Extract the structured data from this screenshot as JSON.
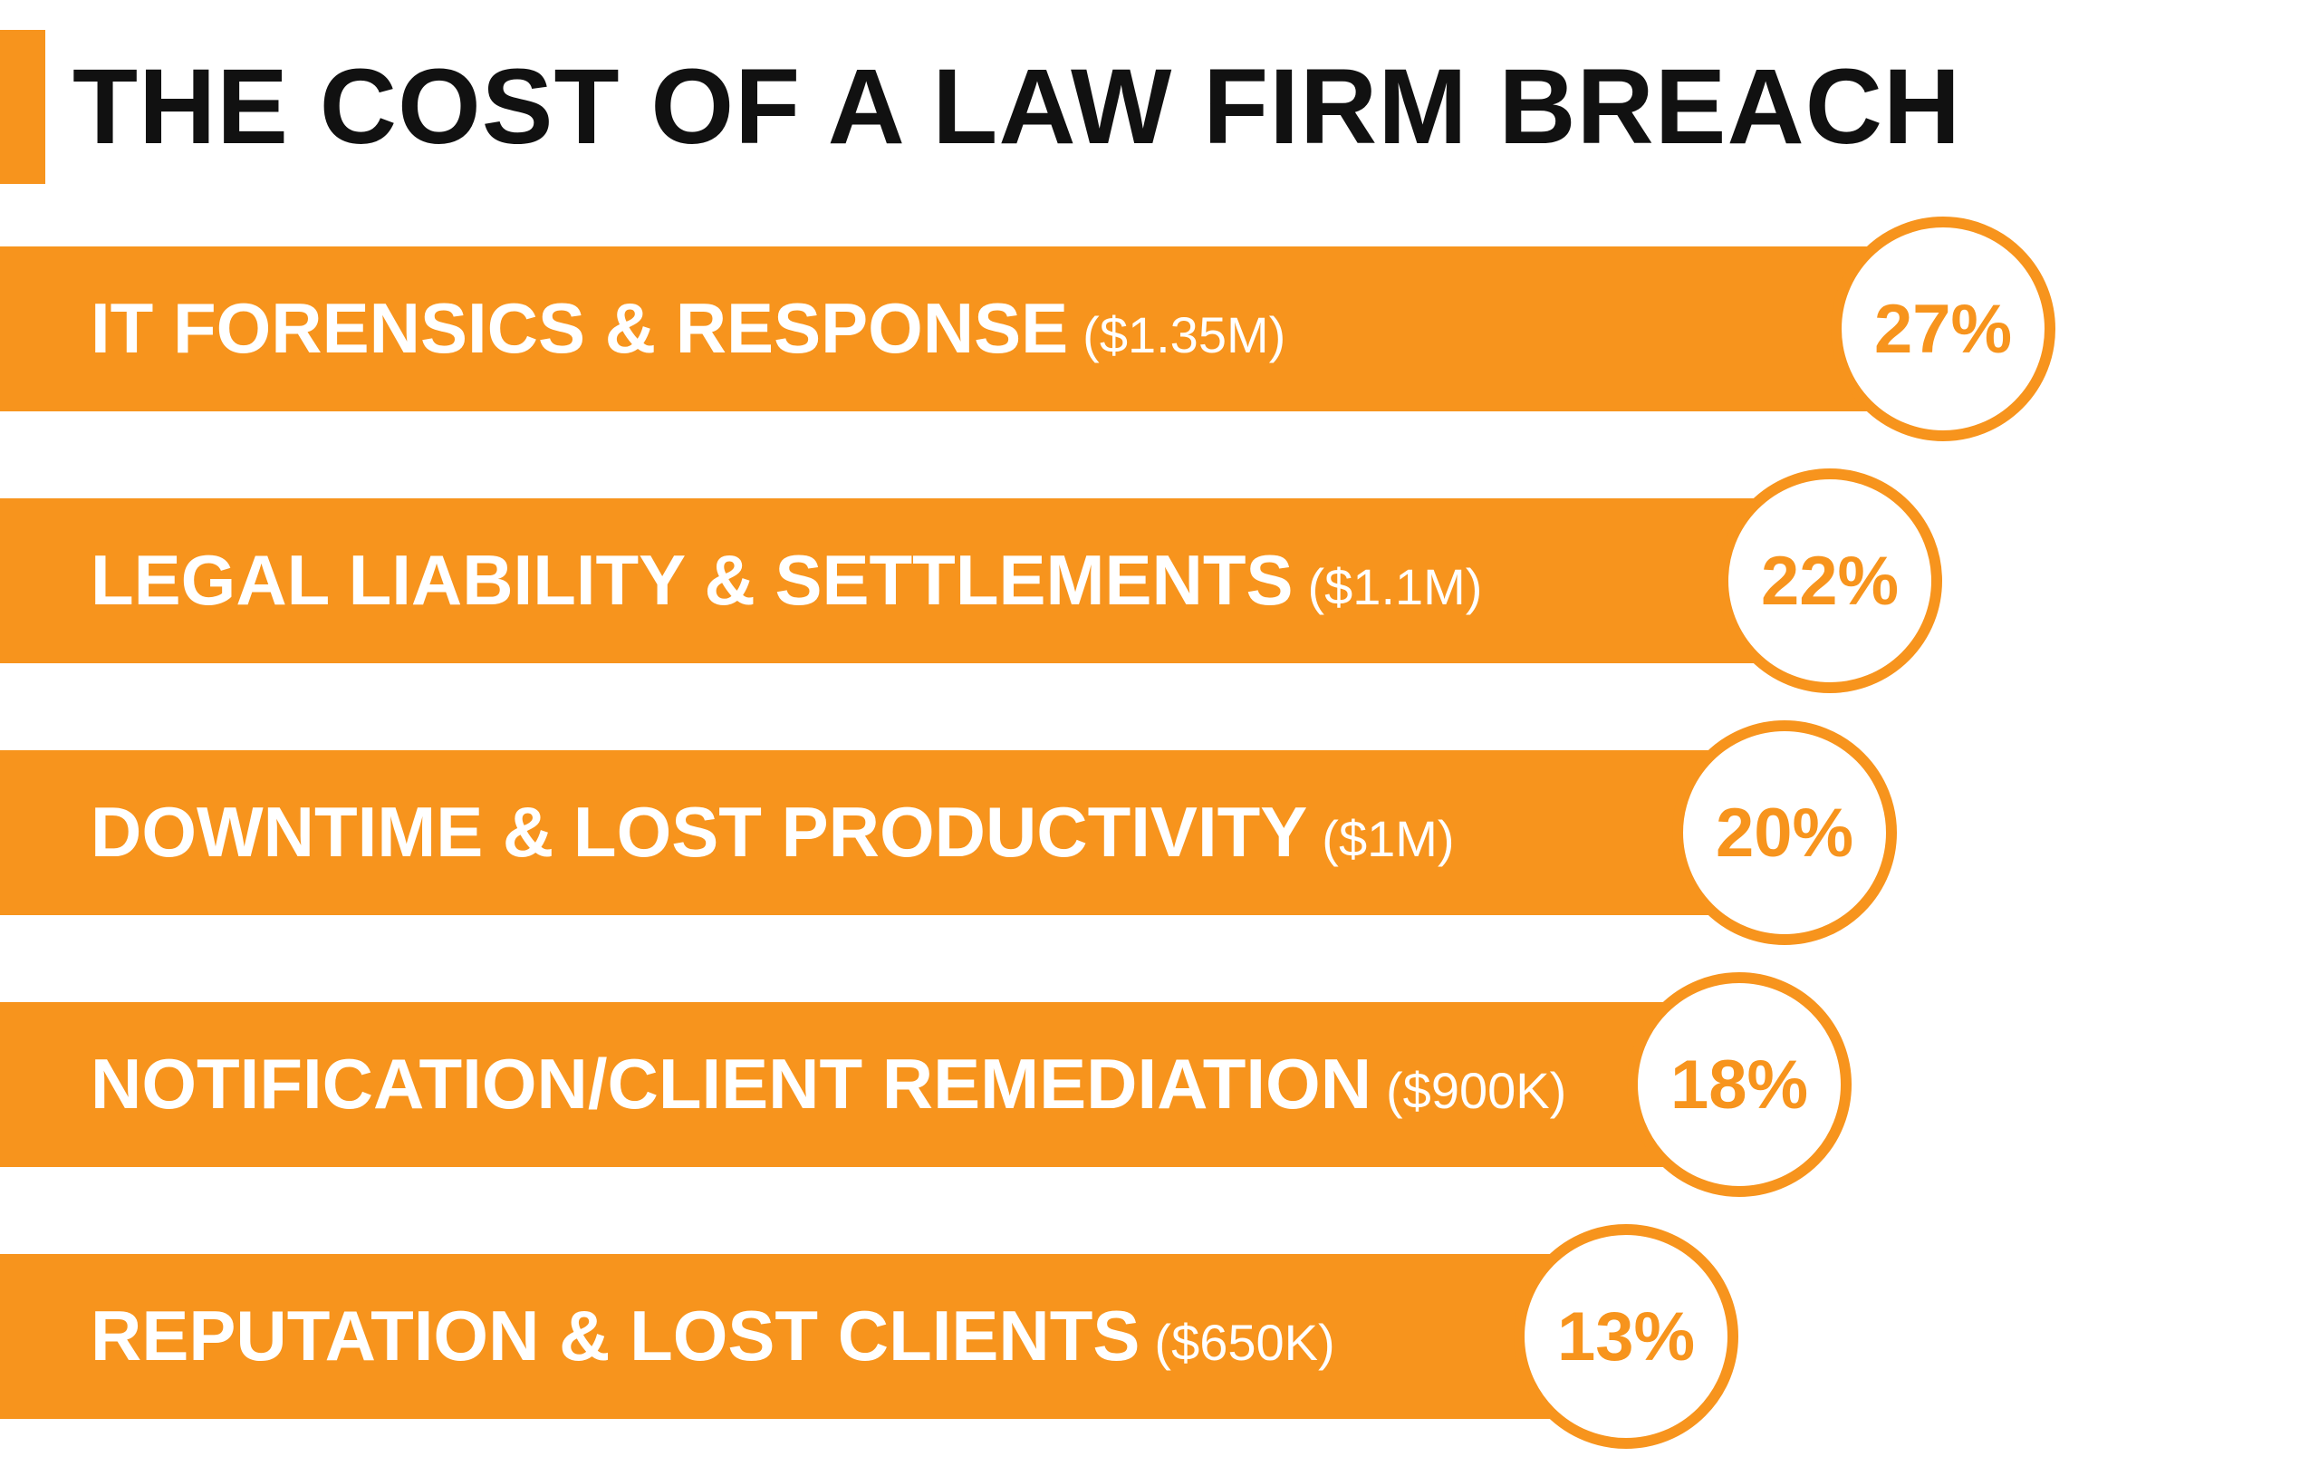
{
  "chart_data": {
    "type": "bar",
    "orientation": "horizontal",
    "title": "THE COST OF A LAW FIRM BREACH",
    "categories": [
      "IT FORENSICS & RESPONSE",
      "LEGAL LIABILITY & SETTLEMENTS",
      "DOWNTIME & LOST PRODUCTIVITY",
      "NOTIFICATION/CLIENT REMEDIATION",
      "REPUTATION & LOST CLIENTS"
    ],
    "amounts": [
      "($1.35M)",
      "($1.1M)",
      "($1M)",
      "($900K)",
      "($650K)"
    ],
    "values": [
      27,
      22,
      20,
      18,
      13
    ],
    "value_labels": [
      "27%",
      "22%",
      "20%",
      "18%",
      "13%"
    ],
    "xlabel": "",
    "ylabel": "",
    "grid": false,
    "legend": "none"
  },
  "colors": {
    "accent": "#f7941d",
    "text_dark": "#111111",
    "bar_text": "#ffffff",
    "circle_fill": "#ffffff"
  }
}
